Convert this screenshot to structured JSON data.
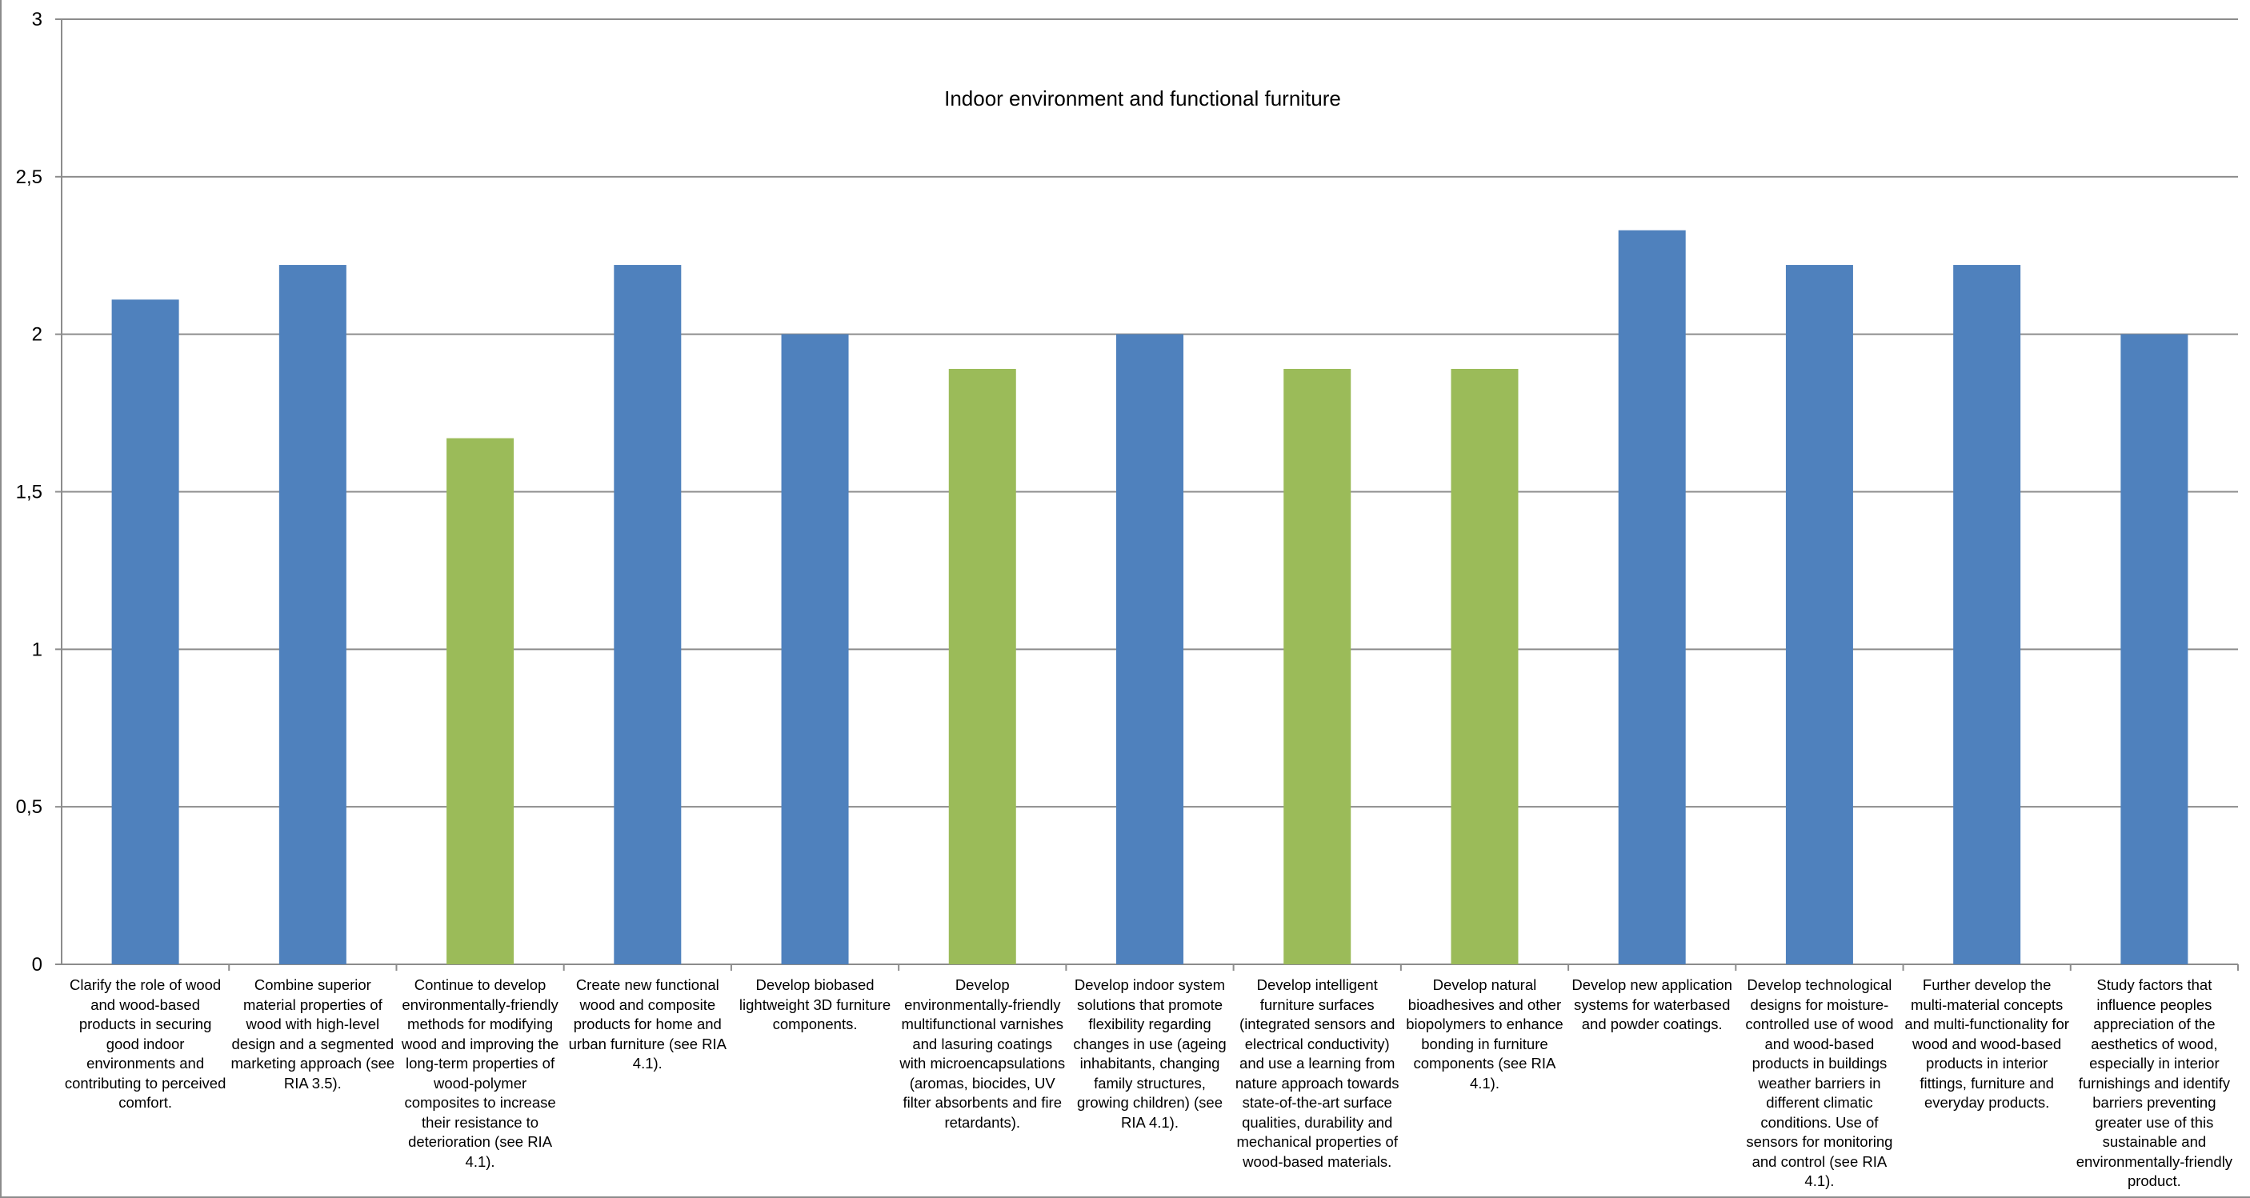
{
  "chart_data": {
    "type": "bar",
    "title": "Indoor environment and functional furniture",
    "xlabel": "",
    "ylabel": "",
    "ylim": [
      0,
      3
    ],
    "yticks": [
      "0",
      "0,5",
      "1",
      "1,5",
      "2",
      "2,5",
      "3"
    ],
    "ytick_values": [
      0,
      0.5,
      1,
      1.5,
      2,
      2.5,
      3
    ],
    "grid": true,
    "legend": "none",
    "colors": {
      "blue": "#4f81bd",
      "green": "#9bbb59",
      "gridline": "#8c8c8c",
      "axis": "#8c8c8c"
    },
    "categories": [
      "Clarify the role of wood and wood-based products in securing good indoor environments and contributing to perceived comfort.",
      "Combine superior material properties of wood with high-level design and a segmented marketing approach (see RIA 3.5).",
      "Continue to develop environmentally-friendly methods for modifying wood and improving the long-term properties of wood-polymer composites to increase their resistance to deterioration (see RIA 4.1).",
      "Create new functional wood and composite products for home and urban furniture (see RIA 4.1).",
      "Develop biobased lightweight 3D furniture components.",
      "Develop environmentally-friendly multifunctional varnishes and lasuring coatings with microencapsulations (aromas, biocides, UV filter absorbents and fire retardants).",
      "Develop indoor system solutions that promote flexibility regarding changes in use (ageing inhabitants, changing family structures, growing children) (see RIA 4.1).",
      "Develop intelligent furniture surfaces (integrated sensors and electrical conductivity) and use a learning from nature approach towards state-of-the-art surface qualities, durability and mechanical properties of wood-based materials.",
      "Develop natural bioadhesives and other biopolymers to enhance bonding in furniture components (see RIA 4.1).",
      "Develop new application systems for waterbased and powder coatings.",
      "Develop technological designs for moisture-controlled use of wood and wood-based products in buildings weather barriers in different climatic conditions. Use of sensors for monitoring and control (see RIA 4.1).",
      "Further develop the multi-material concepts and multi-functionality for wood and wood-based products in interior fittings, furniture and everyday products.",
      "Study factors that influence peoples appreciation of the aesthetics of wood, especially in interior furnishings and identify barriers preventing greater use of this sustainable and environmentally-friendly product."
    ],
    "values": [
      2.11,
      2.22,
      1.67,
      2.22,
      2.0,
      1.89,
      2.0,
      1.89,
      1.89,
      2.33,
      2.22,
      2.22,
      2.0
    ],
    "bar_colors": [
      "blue",
      "blue",
      "green",
      "blue",
      "blue",
      "green",
      "blue",
      "green",
      "green",
      "blue",
      "blue",
      "blue",
      "blue"
    ]
  }
}
